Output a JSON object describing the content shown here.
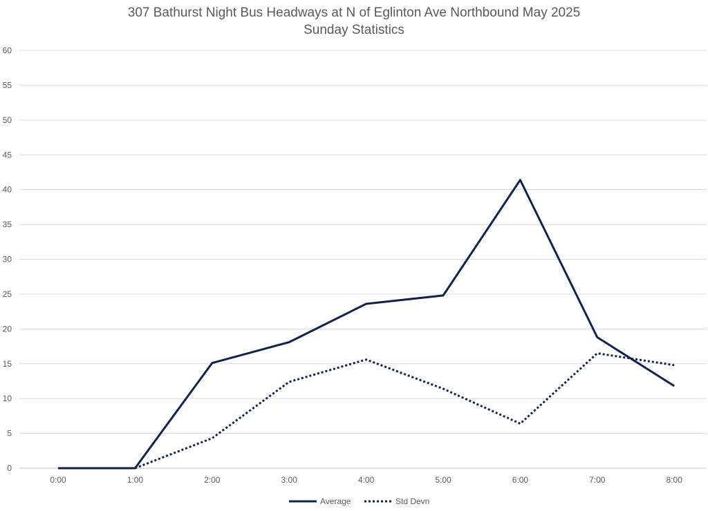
{
  "chart_data": {
    "type": "line",
    "title": "307 Bathurst Night Bus Headways at N of Eglinton Ave Northbound May 2025",
    "subtitle": "Sunday Statistics",
    "xlabel": "",
    "ylabel": "",
    "categories": [
      "0:00",
      "1:00",
      "2:00",
      "3:00",
      "4:00",
      "5:00",
      "6:00",
      "7:00",
      "8:00"
    ],
    "ylim": [
      0,
      60
    ],
    "yticks": [
      0,
      5,
      10,
      15,
      20,
      25,
      30,
      35,
      40,
      45,
      50,
      55,
      60
    ],
    "grid": true,
    "legend_position": "bottom",
    "series": [
      {
        "name": "Average",
        "style": "solid",
        "color": "#0d2253",
        "values": [
          0,
          0,
          15.1,
          18.1,
          23.6,
          24.8,
          41.4,
          18.8,
          11.8
        ]
      },
      {
        "name": "Std Devn",
        "style": "dotted",
        "color": "#0d2253",
        "values": [
          null,
          0,
          4.3,
          12.4,
          15.6,
          11.4,
          6.4,
          16.5,
          14.8
        ]
      }
    ]
  }
}
